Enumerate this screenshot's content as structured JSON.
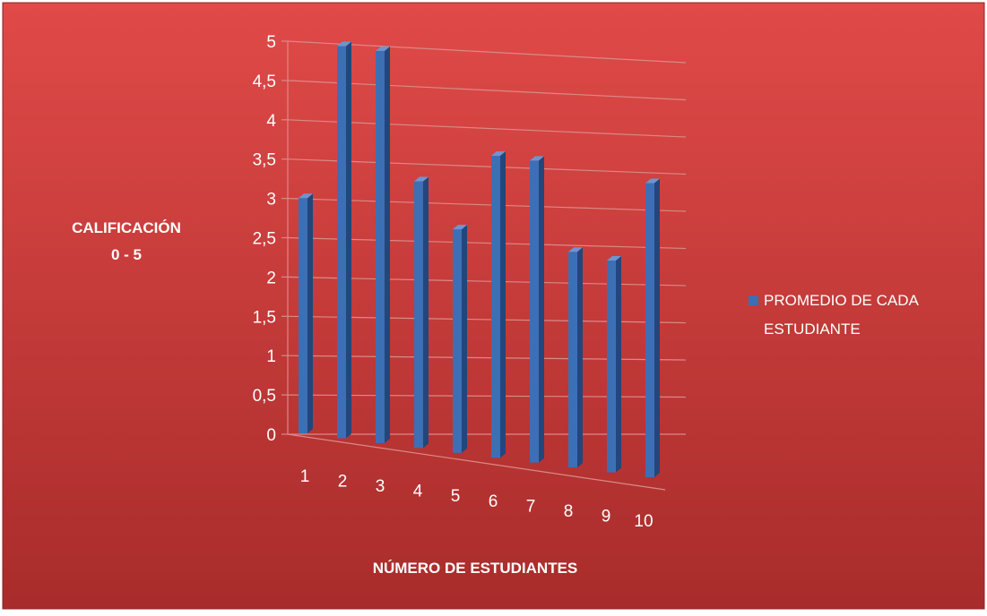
{
  "chart_data": {
    "type": "bar",
    "title": "",
    "xlabel": "NÚMERO DE ESTUDIANTES",
    "ylabel_lines": [
      "CALIFICACIÓN",
      "0 - 5"
    ],
    "categories": [
      "1",
      "2",
      "3",
      "4",
      "5",
      "6",
      "7",
      "8",
      "9",
      "10"
    ],
    "y_ticks": [
      "0",
      "0,5",
      "1",
      "1,5",
      "2",
      "2,5",
      "3",
      "3,5",
      "4",
      "4,5",
      "5"
    ],
    "ylim": [
      0,
      5
    ],
    "grid": true,
    "legend_position": "right",
    "series": [
      {
        "name": "PROMEDIO DE CADA ESTUDIANTE",
        "name_lines": [
          "PROMEDIO DE CADA",
          "ESTUDIANTE"
        ],
        "values": [
          3.0,
          5.0,
          5.0,
          3.4,
          2.85,
          3.85,
          3.85,
          2.75,
          2.7,
          3.75
        ]
      }
    ]
  },
  "colors": {
    "background_top": "#e04a48",
    "background_bottom": "#a82c2b",
    "bar_front": "#3d6fb5",
    "bar_side": "#23467c",
    "bar_top": "#6e95d0",
    "grid": "#d88a88",
    "text": "#ffffff"
  }
}
